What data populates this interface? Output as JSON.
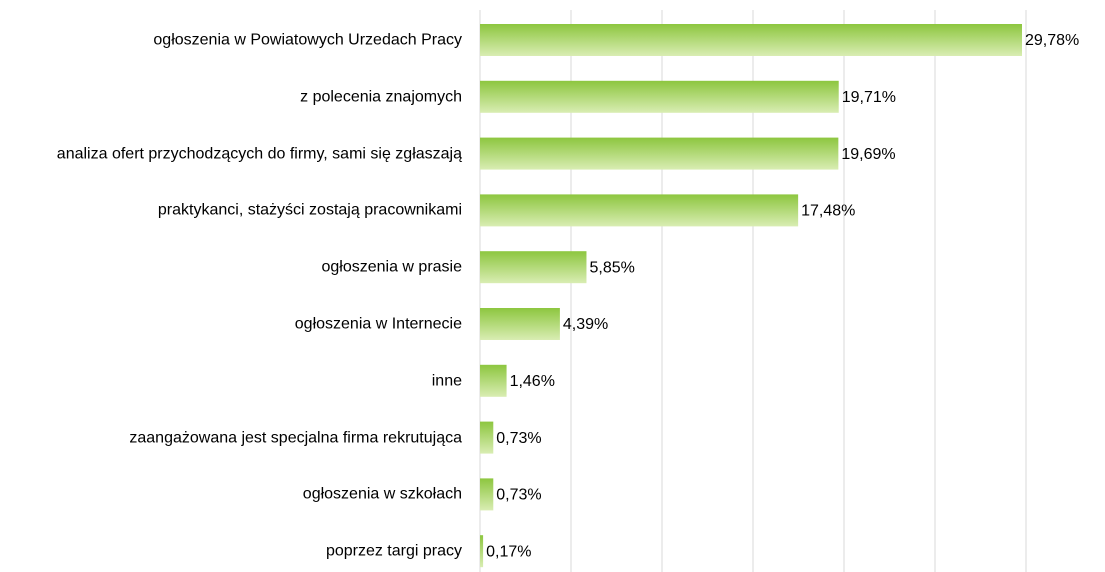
{
  "chart_data": {
    "type": "bar",
    "orientation": "horizontal",
    "categories": [
      "ogłoszenia w Powiatowych Urzedach Pracy",
      "z polecenia znajomych",
      "analiza ofert przychodzących do firmy, sami się zgłaszają",
      "praktykanci, stażyści zostają pracownikami",
      "ogłoszenia w prasie",
      "ogłoszenia w Internecie",
      "inne",
      "zaangażowana jest specjalna firma rekrutująca",
      "ogłoszenia w szkołach",
      "poprzez targi pracy"
    ],
    "values": [
      29.78,
      19.71,
      19.69,
      17.48,
      5.85,
      4.39,
      1.46,
      0.73,
      0.73,
      0.17
    ],
    "value_labels": [
      "29,78%",
      "19,71%",
      "19,69%",
      "17,48%",
      "5,85%",
      "4,39%",
      "1,46%",
      "0,73%",
      "0,73%",
      "0,17%"
    ],
    "color": "#8dc63f",
    "xlim": [
      0,
      30
    ],
    "xticks": [
      0,
      5,
      10,
      15,
      20,
      25,
      30
    ],
    "grid": true
  }
}
